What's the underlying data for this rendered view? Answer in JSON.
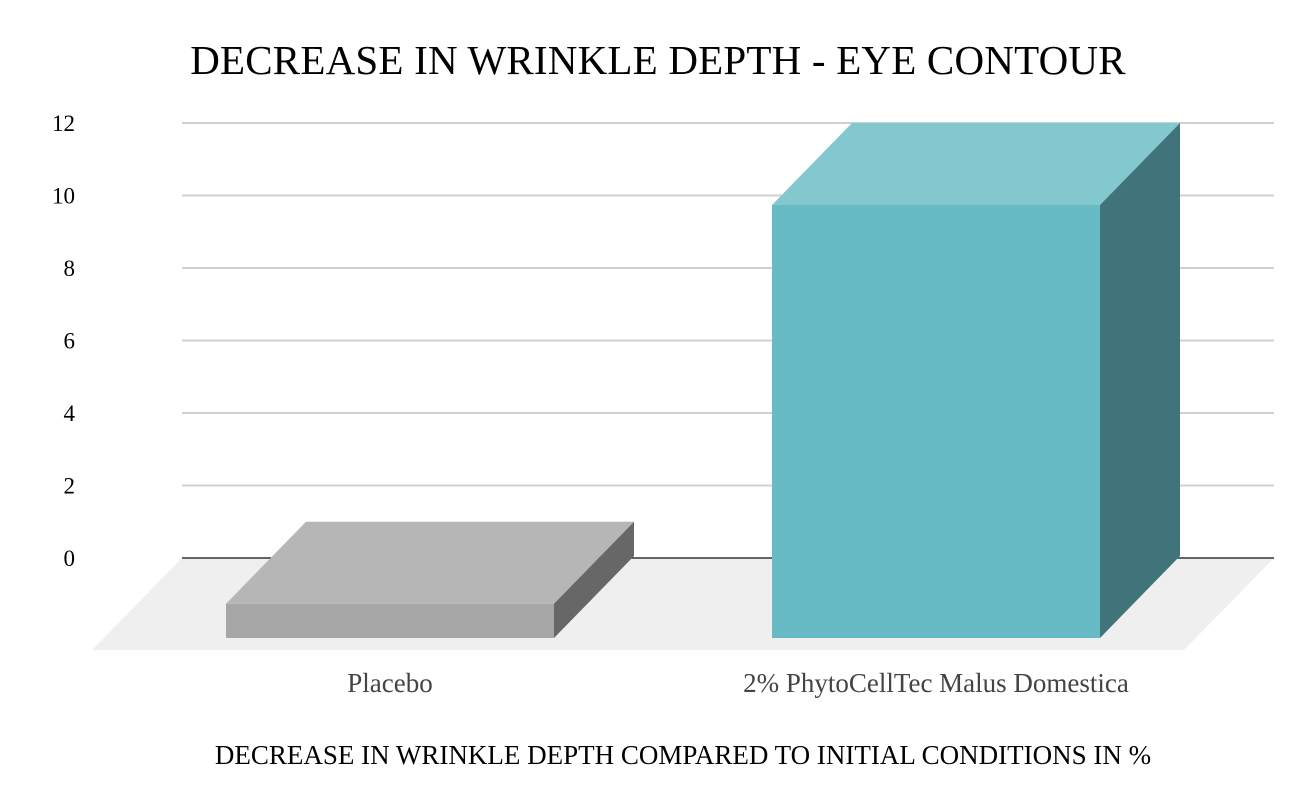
{
  "chart_data": {
    "type": "bar",
    "title": "DECREASE IN WRINKLE DEPTH - EYE CONTOUR",
    "xlabel": "DECREASE IN WRINKLE DEPTH COMPARED TO INITIAL CONDITIONS IN %",
    "ylabel": "",
    "categories": [
      "Placebo",
      "2% PhytoCellTec Malus Domestica"
    ],
    "values": [
      1,
      12
    ],
    "ylim": [
      0,
      12
    ],
    "yticks": [
      0,
      2,
      4,
      6,
      8,
      10,
      12
    ],
    "grid": true,
    "style": "3d",
    "colors": [
      "#a6a6a6",
      "#68bbc4"
    ]
  }
}
